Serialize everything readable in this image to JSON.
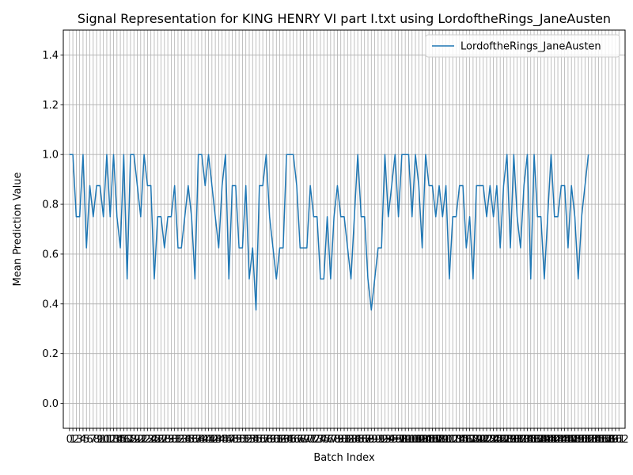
{
  "chart_data": {
    "type": "line",
    "title": "Signal Representation for KING HENRY VI part I.txt using LordoftheRings_JaneAusten",
    "xlabel": "Batch Index",
    "ylabel": "Mean Prediction Value",
    "ylim": [
      -0.1,
      1.5
    ],
    "xlim": [
      -1.82,
      163.82
    ],
    "y_ticks": [
      0.0,
      0.2,
      0.4,
      0.6,
      0.8,
      1.0,
      1.2,
      1.4
    ],
    "x_ticks_every_integer": true,
    "x_ticks_last": 162,
    "grid": true,
    "legend_position": "top-right",
    "series": [
      {
        "name": "LordoftheRings_JaneAusten",
        "color": "#1f77b4",
        "x_start": 0,
        "values": [
          1.0,
          1.0,
          0.75,
          0.75,
          1.0,
          0.625,
          0.875,
          0.75,
          0.875,
          0.875,
          0.75,
          1.0,
          0.75,
          1.0,
          0.75,
          0.625,
          1.0,
          0.5,
          1.0,
          1.0,
          0.875,
          0.75,
          1.0,
          0.875,
          0.875,
          0.5,
          0.75,
          0.75,
          0.625,
          0.75,
          0.75,
          0.875,
          0.625,
          0.625,
          0.75,
          0.875,
          0.75,
          0.5,
          1.0,
          1.0,
          0.875,
          1.0,
          0.875,
          0.75,
          0.625,
          0.875,
          1.0,
          0.5,
          0.875,
          0.875,
          0.625,
          0.625,
          0.875,
          0.5,
          0.625,
          0.375,
          0.875,
          0.875,
          1.0,
          0.75,
          0.625,
          0.5,
          0.625,
          0.625,
          1.0,
          1.0,
          1.0,
          0.875,
          0.625,
          0.625,
          0.625,
          0.875,
          0.75,
          0.75,
          0.5,
          0.5,
          0.75,
          0.5,
          0.75,
          0.875,
          0.75,
          0.75,
          0.625,
          0.5,
          0.75,
          1.0,
          0.75,
          0.75,
          0.5,
          0.375,
          0.5,
          0.625,
          0.625,
          1.0,
          0.75,
          0.875,
          1.0,
          0.75,
          1.0,
          1.0,
          1.0,
          0.75,
          1.0,
          0.875,
          0.625,
          1.0,
          0.875,
          0.875,
          0.75,
          0.875,
          0.75,
          0.875,
          0.5,
          0.75,
          0.75,
          0.875,
          0.875,
          0.625,
          0.75,
          0.5,
          0.875,
          0.875,
          0.875,
          0.75,
          0.875,
          0.75,
          0.875,
          0.625,
          0.875,
          1.0,
          0.625,
          1.0,
          0.75,
          0.625,
          0.875,
          1.0,
          0.5,
          1.0,
          0.75,
          0.75,
          0.5,
          0.75,
          1.0,
          0.75,
          0.75,
          0.875,
          0.875,
          0.625,
          0.875,
          0.75,
          0.5,
          0.75,
          0.875,
          1.0
        ]
      }
    ]
  }
}
